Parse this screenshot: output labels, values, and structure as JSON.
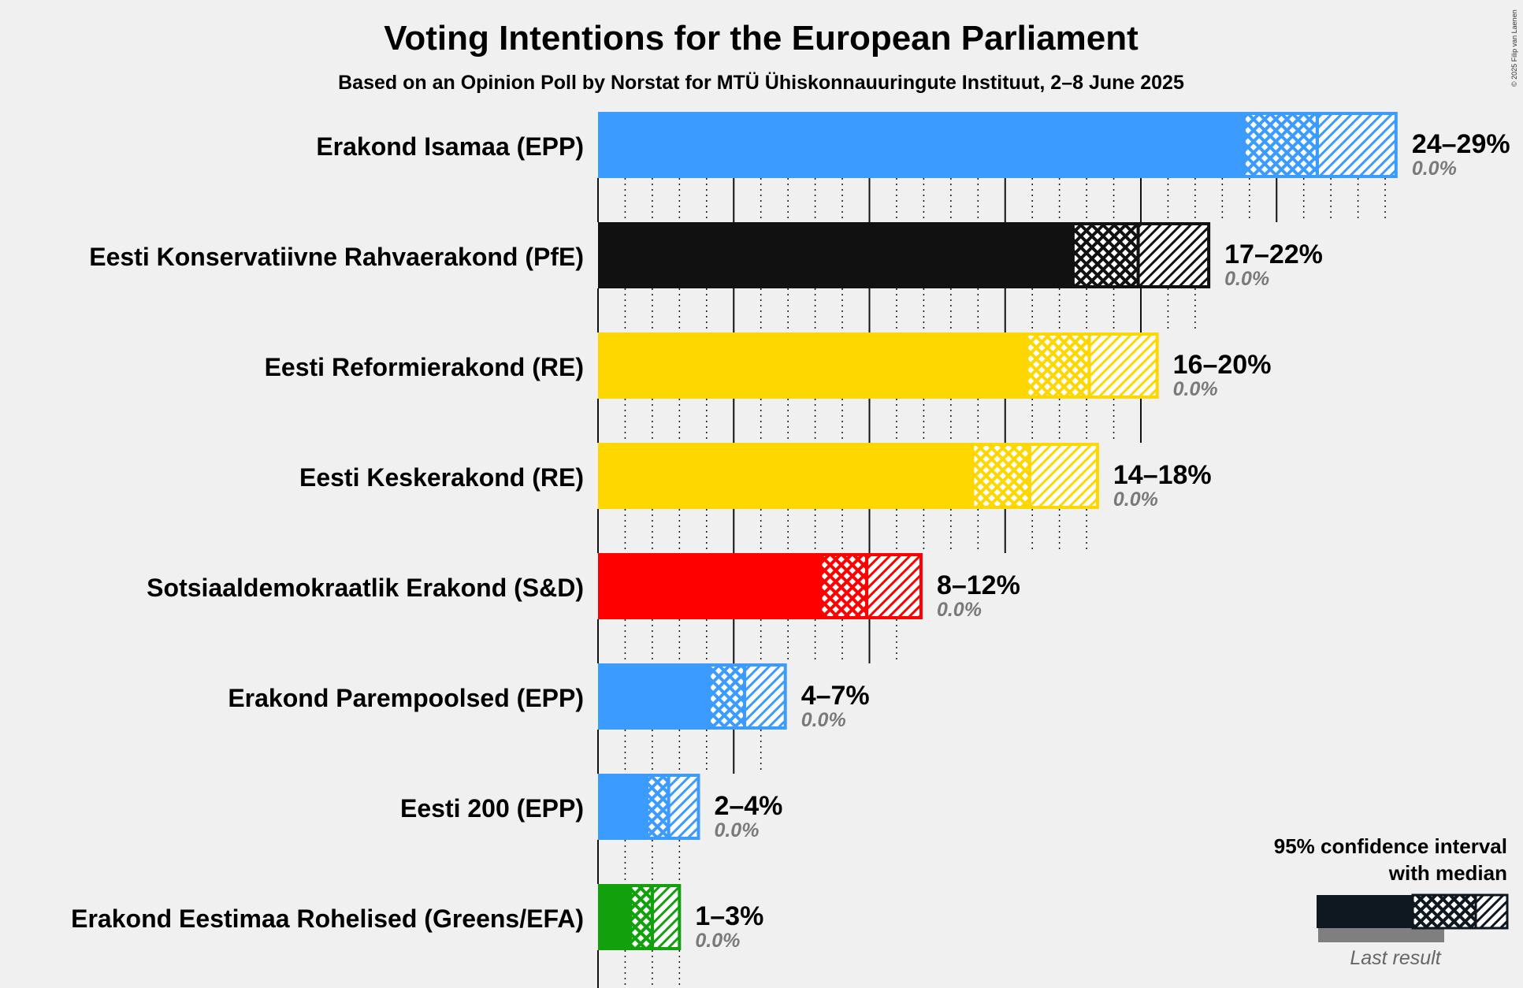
{
  "chart_data": {
    "type": "bar",
    "orientation": "horizontal",
    "title": "Voting Intentions for the European Parliament",
    "subtitle": "Based on an Opinion Poll by Norstat for MTÜ Ühiskonnauuringute Instituut, 2–8 June 2025",
    "copyright": "© 2025 Filip van Laenen",
    "xlim": [
      0,
      30
    ],
    "parties": [
      {
        "name": "Erakond Isamaa (EPP)",
        "color": "#3b9bff",
        "ci80_low": 23.8,
        "median": 26.5,
        "ci95_low": 23.8,
        "ci95_high": 29.4,
        "ci_start": 23.8,
        "range_label": "24–29%",
        "last_result": "0.0%"
      },
      {
        "name": "Eesti Konservatiivne Rahvaerakond (PfE)",
        "color": "#111111",
        "ci_start": 17.5,
        "median": 19.9,
        "ci95_high": 22.5,
        "range_label": "17–22%",
        "last_result": "0.0%"
      },
      {
        "name": "Eesti Reformierakond (RE)",
        "color": "#ffd700",
        "ci_start": 15.8,
        "median": 18.1,
        "ci95_high": 20.6,
        "range_label": "16–20%",
        "last_result": "0.0%"
      },
      {
        "name": "Eesti Keskerakond (RE)",
        "color": "#ffd700",
        "ci_start": 13.8,
        "median": 15.9,
        "ci95_high": 18.4,
        "range_label": "14–18%",
        "last_result": "0.0%"
      },
      {
        "name": "Sotsiaaldemokraatlik Erakond (S&D)",
        "color": "#ff0000",
        "ci_start": 8.2,
        "median": 9.9,
        "ci95_high": 11.9,
        "range_label": "8–12%",
        "last_result": "0.0%"
      },
      {
        "name": "Erakond Parempoolsed (EPP)",
        "color": "#3b9bff",
        "ci_start": 4.1,
        "median": 5.4,
        "ci95_high": 6.9,
        "range_label": "4–7%",
        "last_result": "0.0%"
      },
      {
        "name": "Eesti 200 (EPP)",
        "color": "#3b9bff",
        "ci_start": 1.8,
        "median": 2.6,
        "ci95_high": 3.7,
        "range_label": "2–4%",
        "last_result": "0.0%"
      },
      {
        "name": "Erakond Eestimaa Rohelised (Greens/EFA)",
        "color": "#12a10c",
        "ci_start": 1.2,
        "median": 2.0,
        "ci95_high": 3.0,
        "range_label": "1–3%",
        "last_result": "0.0%"
      }
    ],
    "legend": {
      "line1": "95% confidence interval",
      "line2": "with median",
      "last_result_label": "Last result"
    }
  },
  "colors": {
    "background": "#f0f0f0",
    "legend_bar": "#0f1720",
    "last_result_bar": "#7f7f7f"
  }
}
